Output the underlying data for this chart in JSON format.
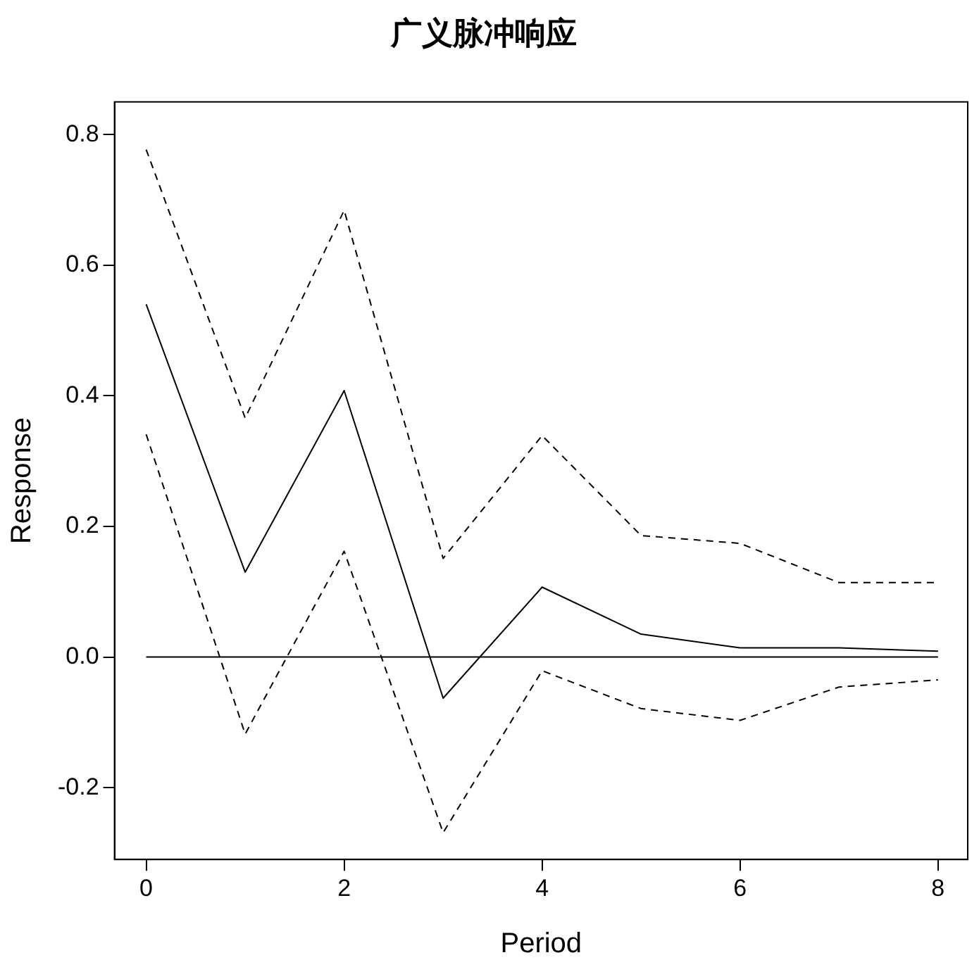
{
  "chart_data": {
    "type": "line",
    "title": "广义脉冲响应",
    "xlabel": "Period",
    "ylabel": "Response",
    "x": [
      0,
      1,
      2,
      3,
      4,
      5,
      6,
      7,
      8
    ],
    "series": [
      {
        "color": "#000000",
        "line_style": "solid",
        "values": [
          0.54,
          0.13,
          0.408,
          -0.063,
          0.107,
          0.035,
          0.014,
          0.014,
          0.009
        ]
      },
      {
        "color": "#000000",
        "line_style": "dashed",
        "values": [
          0.777,
          0.366,
          0.684,
          0.151,
          0.339,
          0.186,
          0.174,
          0.114,
          0.114
        ]
      },
      {
        "color": "#000000",
        "line_style": "dashed",
        "values": [
          0.341,
          -0.118,
          0.162,
          -0.269,
          -0.021,
          -0.079,
          -0.097,
          -0.046,
          -0.035
        ]
      }
    ],
    "xlim": [
      -0.32,
      8.3
    ],
    "xticks": [
      0,
      2,
      4,
      6,
      8
    ],
    "ylim": [
      -0.31,
      0.85
    ],
    "yticks": [
      {
        "value": -0.2,
        "label": "-0.2"
      },
      {
        "value": 0,
        "label": "0.0"
      },
      {
        "value": 0.2,
        "label": "0.2"
      },
      {
        "value": 0.4,
        "label": "0.4"
      },
      {
        "value": 0.6,
        "label": "0.6"
      },
      {
        "value": 0.8,
        "label": "0.8"
      }
    ],
    "ref_lines": [
      {
        "axis": "y",
        "value": 0,
        "color": "#000000",
        "line_style": "solid"
      }
    ],
    "grid": false,
    "legend": false,
    "marker": "none"
  }
}
